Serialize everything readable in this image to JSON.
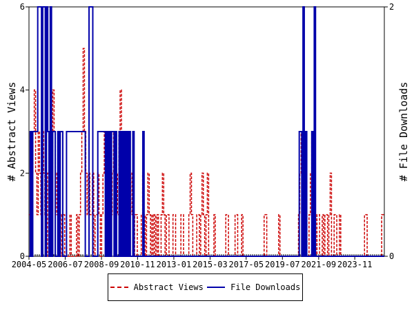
{
  "chart_data": {
    "type": "line",
    "x_tick_labels": [
      "2004-05",
      "2006-07",
      "2008-09",
      "2010-11",
      "2013-01",
      "2015-03",
      "2017-05",
      "2019-07",
      "2021-09",
      "2023-11"
    ],
    "x_tick_years": [
      2004.33,
      2006.5,
      2008.67,
      2010.83,
      2013.0,
      2015.17,
      2017.33,
      2019.5,
      2021.67,
      2023.83
    ],
    "xlim": [
      2004.33,
      2025.6
    ],
    "ylabel_left": "# Abstract Views",
    "ylabel_right": "# File Downloads",
    "ylim_left": [
      0,
      6
    ],
    "ylim_right": [
      0,
      2
    ],
    "yticks_left": [
      "0",
      "2",
      "4",
      "6"
    ],
    "yticks_right": [
      "0",
      "2"
    ],
    "grid": false,
    "legend_position": "bottom",
    "series": [
      {
        "name": "Abstract Views",
        "axis": "left",
        "color": "#cc0000",
        "style": "dashed",
        "values": [
          1,
          1,
          2,
          3,
          4,
          2,
          1,
          3,
          2,
          1,
          3,
          2,
          1,
          0,
          2,
          3,
          1,
          2,
          4,
          3,
          2,
          1,
          2,
          1,
          0,
          1,
          1,
          0,
          0,
          0,
          0,
          1,
          0,
          0,
          0,
          0,
          1,
          0,
          1,
          2,
          3,
          5,
          3,
          2,
          1,
          2,
          1,
          1,
          2,
          0,
          1,
          1,
          2,
          1,
          0,
          1,
          2,
          3,
          2,
          1,
          1,
          0,
          1,
          2,
          3,
          3,
          2,
          1,
          3,
          4,
          1,
          0,
          0,
          1,
          2,
          0,
          1,
          2,
          1,
          0,
          1,
          1,
          0,
          0,
          0,
          1,
          2,
          1,
          0,
          1,
          2,
          1,
          0,
          1,
          0,
          1,
          0,
          1,
          0,
          0,
          1,
          2,
          1,
          0,
          1,
          1,
          0,
          0,
          0,
          1,
          1,
          0,
          0,
          0,
          0,
          1,
          1,
          0,
          0,
          0,
          0,
          1,
          2,
          1,
          0,
          0,
          0,
          1,
          1,
          0,
          1,
          2,
          1,
          0,
          1,
          2,
          0,
          0,
          0,
          0,
          1,
          0,
          0,
          0,
          0,
          0,
          0,
          0,
          0,
          1,
          1,
          0,
          0,
          0,
          0,
          0,
          1,
          1,
          0,
          0,
          0,
          1,
          0,
          0,
          0,
          0,
          0,
          0,
          0,
          0,
          0,
          0,
          0,
          0,
          0,
          0,
          0,
          0,
          1,
          1,
          0,
          0,
          0,
          0,
          0,
          0,
          0,
          0,
          0,
          1,
          0,
          0,
          0,
          0,
          0,
          0,
          0,
          0,
          0,
          0,
          0,
          0,
          0,
          0,
          1,
          2,
          3,
          2,
          1,
          1,
          0,
          0,
          1,
          2,
          3,
          2,
          1,
          0,
          1,
          1,
          0,
          0,
          1,
          0,
          1,
          1,
          0,
          1,
          2,
          0,
          0,
          1,
          1,
          0,
          0,
          1,
          0,
          0,
          0,
          0,
          0,
          0,
          0,
          0,
          0,
          0,
          0,
          0,
          0,
          0,
          0,
          0,
          0,
          0,
          1,
          1,
          0,
          0,
          0,
          0,
          0,
          0,
          0,
          0,
          0,
          0,
          0,
          1,
          1
        ]
      },
      {
        "name": "File Downloads",
        "axis": "right",
        "color": "#0000aa",
        "style": "solid",
        "values": [
          0,
          1,
          0,
          1,
          1,
          1,
          1,
          2,
          2,
          2,
          0,
          2,
          2,
          0,
          2,
          1,
          0,
          2,
          0,
          1,
          1,
          0,
          0,
          1,
          0,
          1,
          1,
          0,
          0,
          0,
          1,
          1,
          1,
          1,
          1,
          1,
          1,
          1,
          1,
          1,
          1,
          1,
          1,
          1,
          1,
          0,
          0,
          0,
          2,
          2,
          2,
          0,
          0,
          0,
          0,
          1,
          1,
          1,
          1,
          1,
          1,
          0,
          1,
          0,
          1,
          0,
          1,
          1,
          0,
          1,
          0,
          0,
          1,
          0,
          1,
          0,
          1,
          0,
          1,
          0,
          1,
          0,
          0,
          1,
          0,
          0,
          0,
          0,
          0,
          0,
          0,
          1,
          0,
          0,
          0,
          0,
          0,
          0,
          0,
          0,
          0,
          0,
          0,
          0,
          0,
          0,
          0,
          0,
          0,
          0,
          0,
          0,
          0,
          0,
          0,
          0,
          0,
          0,
          0,
          0,
          0,
          0,
          0,
          0,
          0,
          0,
          0,
          0,
          0,
          0,
          0,
          0,
          0,
          0,
          0,
          0,
          0,
          0,
          0,
          0,
          0,
          0,
          0,
          0,
          0,
          0,
          0,
          0,
          0,
          0,
          0,
          0,
          0,
          0,
          0,
          0,
          0,
          0,
          0,
          0,
          0,
          0,
          0,
          0,
          0,
          0,
          0,
          0,
          0,
          0,
          0,
          0,
          0,
          0,
          0,
          0,
          0,
          0,
          0,
          0,
          0,
          0,
          0,
          0,
          0,
          0,
          0,
          0,
          0,
          0,
          0,
          0,
          0,
          0,
          0,
          0,
          0,
          0,
          0,
          0,
          0,
          0,
          0,
          0,
          0,
          0,
          0,
          0,
          0,
          0,
          0,
          0,
          0,
          0,
          0,
          0,
          1,
          1,
          0,
          2,
          0,
          1,
          0,
          0,
          0,
          0,
          1,
          0,
          2,
          0,
          0,
          0,
          0,
          0,
          0,
          0,
          0,
          0,
          0,
          0,
          0,
          0,
          0,
          0,
          0,
          0,
          0,
          0,
          0,
          0,
          0,
          0,
          0,
          0,
          0,
          0,
          0,
          0,
          0,
          0,
          0,
          0,
          0,
          0,
          0,
          0,
          0,
          0,
          0,
          0,
          0,
          0,
          0,
          0,
          0,
          0,
          0,
          0,
          0,
          0,
          0,
          0,
          0,
          0
        ]
      }
    ]
  }
}
